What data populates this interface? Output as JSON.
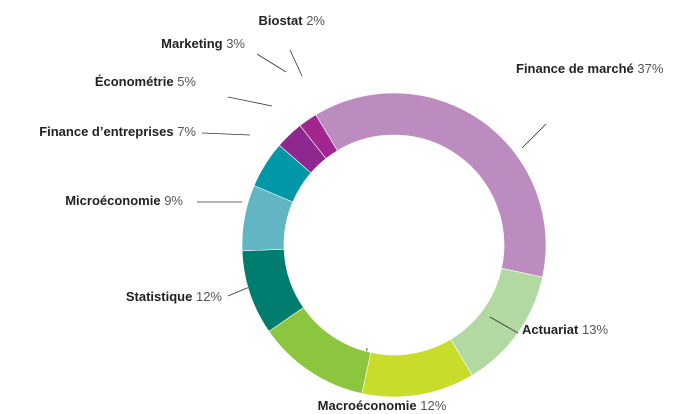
{
  "chart_data": {
    "type": "donut",
    "categories": [
      "Finance de marché",
      "Actuariat",
      "Macroéconomie",
      "Statistique",
      "Microéconomie",
      "Finance d’entreprises",
      "Économétrie",
      "Marketing",
      "Biostat"
    ],
    "values": [
      37,
      13,
      12,
      12,
      9,
      7,
      5,
      3,
      2
    ],
    "value_labels": [
      "37%",
      "13%",
      "12%",
      "12%",
      "9%",
      "7%",
      "5%",
      "3%",
      "2%"
    ],
    "colors": [
      "#bc8cc0",
      "#b2d9a2",
      "#c9dc2c",
      "#8cc63f",
      "#007d6e",
      "#62b5c3",
      "#0098a8",
      "#8e2790",
      "#a3268f"
    ]
  }
}
